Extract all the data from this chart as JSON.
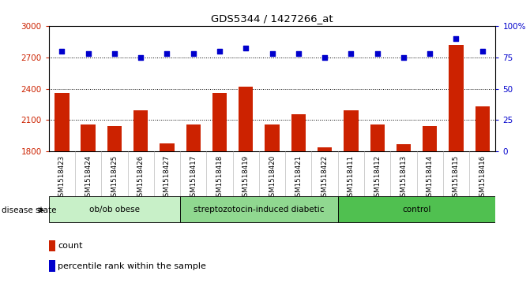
{
  "title": "GDS5344 / 1427266_at",
  "samples": [
    "GSM1518423",
    "GSM1518424",
    "GSM1518425",
    "GSM1518426",
    "GSM1518427",
    "GSM1518417",
    "GSM1518418",
    "GSM1518419",
    "GSM1518420",
    "GSM1518421",
    "GSM1518422",
    "GSM1518411",
    "GSM1518412",
    "GSM1518413",
    "GSM1518414",
    "GSM1518415",
    "GSM1518416"
  ],
  "counts": [
    2360,
    2060,
    2040,
    2195,
    1880,
    2060,
    2360,
    2420,
    2060,
    2155,
    1840,
    2195,
    2060,
    1870,
    2040,
    2820,
    2230
  ],
  "percentile_ranks": [
    80,
    78,
    78,
    75,
    78,
    78,
    80,
    82,
    78,
    78,
    75,
    78,
    78,
    75,
    78,
    90,
    80
  ],
  "groups": [
    {
      "label": "ob/ob obese",
      "start": 0,
      "end": 5,
      "color": "#c8f0c8"
    },
    {
      "label": "streptozotocin-induced diabetic",
      "start": 5,
      "end": 11,
      "color": "#90d890"
    },
    {
      "label": "control",
      "start": 11,
      "end": 17,
      "color": "#50c050"
    }
  ],
  "ylim_left": [
    1800,
    3000
  ],
  "ylim_right": [
    0,
    100
  ],
  "yticks_left": [
    1800,
    2100,
    2400,
    2700,
    3000
  ],
  "yticks_right": [
    0,
    25,
    50,
    75,
    100
  ],
  "bar_color": "#cc2200",
  "dot_color": "#0000cc",
  "grid_color": "#000000",
  "bar_width": 0.55,
  "tick_label_bg": "#d0d0d0",
  "group_colors": [
    "#c8f0c8",
    "#90d890",
    "#50c050"
  ],
  "plot_bg": "#ffffff"
}
